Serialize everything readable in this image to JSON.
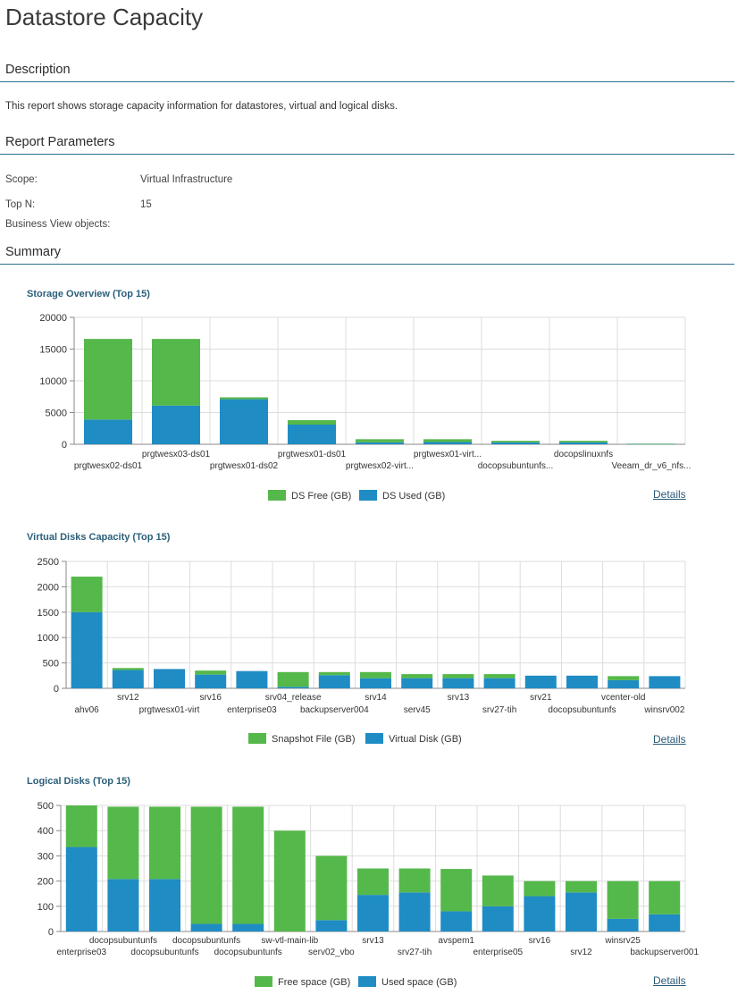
{
  "title": "Datastore Capacity",
  "sections": {
    "description": "Description",
    "parameters": "Report Parameters",
    "summary": "Summary"
  },
  "description_text": "This report shows storage capacity information for datastores, virtual and logical disks.",
  "parameters": [
    {
      "label": "Scope:",
      "value": "Virtual Infrastructure"
    },
    {
      "label": "Top N:",
      "value": "15"
    },
    {
      "label": "Business View objects:",
      "value": ""
    }
  ],
  "colors": {
    "green": "#55b84a",
    "blue": "#1f8cc4",
    "grid": "#dddddd",
    "axis": "#888888"
  },
  "details_label": "Details",
  "chart_data": [
    {
      "type": "bar",
      "stacked": true,
      "title": "Storage Overview (Top 15)",
      "categories": [
        "prgtwesx02-ds01",
        "prgtwesx03-ds01",
        "prgtwesx01-ds02",
        "prgtwesx01-ds01",
        "prgtwesx02-virt...",
        "prgtwesx01-virt...",
        "docopsubuntunfs...",
        "docopslinuxnfs",
        "Veeam_dr_v6_nfs..."
      ],
      "series": [
        {
          "name": "DS Used (GB)",
          "color": "#1f8cc4",
          "values": [
            3900,
            6100,
            7100,
            3100,
            300,
            350,
            300,
            300,
            50
          ]
        },
        {
          "name": "DS Free (GB)",
          "color": "#55b84a",
          "values": [
            12700,
            10500,
            300,
            700,
            500,
            450,
            250,
            250,
            50
          ]
        }
      ],
      "legend_order": [
        "DS Free (GB)",
        "DS Used (GB)"
      ],
      "ylim": [
        0,
        20000
      ],
      "yticks": [
        0,
        5000,
        10000,
        15000,
        20000
      ],
      "grid": true,
      "legend": "bottom"
    },
    {
      "type": "bar",
      "stacked": true,
      "title": "Virtual Disks Capacity (Top 15)",
      "categories": [
        "ahv06",
        "srv12",
        "prgtwesx01-virt",
        "srv16",
        "enterprise03",
        "srv04_release",
        "backupserver004",
        "srv14",
        "serv45",
        "srv13",
        "srv27-tih",
        "srv21",
        "docopsubuntunfs",
        "vcenter-old",
        "winsrv002"
      ],
      "series": [
        {
          "name": "Virtual Disk (GB)",
          "color": "#1f8cc4",
          "values": [
            1500,
            360,
            380,
            270,
            340,
            30,
            260,
            200,
            200,
            200,
            200,
            250,
            250,
            160,
            240
          ]
        },
        {
          "name": "Snapshot File (GB)",
          "color": "#55b84a",
          "values": [
            700,
            40,
            0,
            80,
            0,
            290,
            60,
            120,
            80,
            80,
            80,
            0,
            0,
            80,
            0
          ]
        }
      ],
      "legend_order": [
        "Snapshot File (GB)",
        "Virtual Disk (GB)"
      ],
      "ylim": [
        0,
        2500
      ],
      "yticks": [
        0,
        500,
        1000,
        1500,
        2000,
        2500
      ],
      "grid": true,
      "legend": "bottom"
    },
    {
      "type": "bar",
      "stacked": true,
      "title": "Logical Disks (Top 15)",
      "categories": [
        "enterprise03",
        "docopsubuntunfs",
        "docopsubuntunfs",
        "docopsubuntunfs",
        "docopsubuntunfs",
        "sw-vtl-main-lib",
        "serv02_vbo",
        "srv13",
        "srv27-tih",
        "avspem1",
        "enterprise05",
        "srv16",
        "srv12",
        "winsrv25",
        "backupserver001"
      ],
      "series": [
        {
          "name": "Used space (GB)",
          "color": "#1f8cc4",
          "values": [
            335,
            208,
            208,
            30,
            30,
            0,
            45,
            145,
            155,
            80,
            100,
            140,
            155,
            50,
            68
          ]
        },
        {
          "name": "Free space (GB)",
          "color": "#55b84a",
          "values": [
            165,
            287,
            287,
            465,
            465,
            400,
            255,
            105,
            95,
            168,
            122,
            60,
            45,
            150,
            132
          ]
        }
      ],
      "legend_order": [
        "Free space (GB)",
        "Used space (GB)"
      ],
      "ylim": [
        0,
        500
      ],
      "yticks": [
        0,
        100,
        200,
        300,
        400,
        500
      ],
      "grid": true,
      "legend": "bottom"
    }
  ]
}
